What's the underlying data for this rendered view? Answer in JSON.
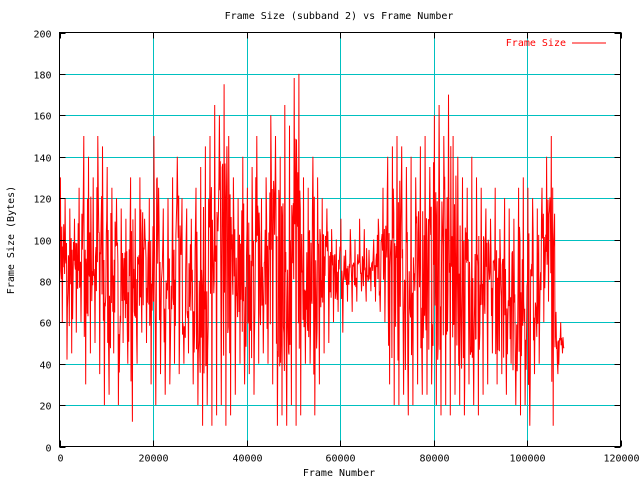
{
  "chart_data": {
    "type": "line",
    "title": "Frame Size (subband 2) vs Frame Number",
    "xlabel": "Frame Number",
    "ylabel": "Frame Size (Bytes)",
    "xlim": [
      0,
      120000
    ],
    "ylim": [
      0,
      200
    ],
    "xticks": [
      0,
      20000,
      40000,
      60000,
      80000,
      100000,
      120000
    ],
    "yticks": [
      0,
      20,
      40,
      60,
      80,
      100,
      120,
      140,
      160,
      180,
      200
    ],
    "grid": true,
    "legend_position": "top-right",
    "colors": {
      "series": "#ff0000",
      "grid": "#00c0c0",
      "axes": "#000000"
    },
    "series": [
      {
        "name": "Frame Size",
        "envelope_per_1000_frames": {
          "x": [
            0,
            1000,
            2000,
            3000,
            4000,
            5000,
            6000,
            7000,
            8000,
            9000,
            10000,
            11000,
            12000,
            13000,
            14000,
            15000,
            16000,
            17000,
            18000,
            19000,
            20000,
            21000,
            22000,
            23000,
            24000,
            25000,
            26000,
            27000,
            28000,
            29000,
            30000,
            31000,
            32000,
            33000,
            34000,
            35000,
            36000,
            37000,
            38000,
            39000,
            40000,
            41000,
            42000,
            43000,
            44000,
            45000,
            46000,
            47000,
            48000,
            49000,
            50000,
            51000,
            52000,
            53000,
            54000,
            55000,
            56000,
            57000,
            58000,
            59000,
            60000,
            61000,
            62000,
            63000,
            64000,
            65000,
            66000,
            67000,
            68000,
            69000,
            70000,
            71000,
            72000,
            73000,
            74000,
            75000,
            76000,
            77000,
            78000,
            79000,
            80000,
            81000,
            82000,
            83000,
            84000,
            85000,
            86000,
            87000,
            88000,
            89000,
            90000,
            91000,
            92000,
            93000,
            94000,
            95000,
            96000,
            97000,
            98000,
            99000,
            100000,
            101000,
            102000,
            103000,
            104000,
            105000,
            106000,
            107000
          ],
          "max": [
            130,
            120,
            115,
            110,
            125,
            150,
            140,
            130,
            150,
            145,
            135,
            125,
            120,
            115,
            110,
            130,
            115,
            130,
            110,
            120,
            150,
            125,
            115,
            120,
            130,
            140,
            120,
            115,
            110,
            125,
            135,
            145,
            150,
            165,
            160,
            175,
            150,
            130,
            120,
            140,
            125,
            135,
            150,
            120,
            130,
            160,
            150,
            140,
            165,
            155,
            178,
            180,
            130,
            125,
            140,
            130,
            120,
            115,
            105,
            100,
            110,
            95,
            105,
            100,
            110,
            105,
            95,
            100,
            110,
            125,
            140,
            145,
            150,
            145,
            135,
            140,
            130,
            145,
            150,
            135,
            160,
            165,
            150,
            170,
            150,
            140,
            130,
            125,
            140,
            130,
            125,
            115,
            110,
            125,
            105,
            120,
            115,
            110,
            125,
            130,
            125,
            120,
            115,
            125,
            140,
            150,
            65,
            60
          ],
          "min": [
            60,
            42,
            45,
            55,
            60,
            30,
            45,
            50,
            35,
            20,
            25,
            45,
            20,
            50,
            40,
            12,
            40,
            55,
            50,
            30,
            20,
            35,
            25,
            30,
            40,
            35,
            40,
            45,
            30,
            20,
            10,
            20,
            10,
            15,
            20,
            10,
            15,
            25,
            40,
            30,
            35,
            25,
            40,
            45,
            40,
            30,
            10,
            15,
            10,
            20,
            10,
            15,
            40,
            40,
            15,
            30,
            45,
            50,
            60,
            65,
            55,
            70,
            65,
            70,
            75,
            70,
            75,
            70,
            65,
            60,
            30,
            20,
            20,
            25,
            15,
            20,
            30,
            25,
            25,
            30,
            20,
            15,
            20,
            15,
            25,
            20,
            15,
            30,
            20,
            15,
            25,
            30,
            45,
            30,
            35,
            25,
            40,
            20,
            15,
            20,
            10,
            35,
            40,
            60,
            70,
            10,
            35,
            45
          ]
        }
      }
    ]
  }
}
